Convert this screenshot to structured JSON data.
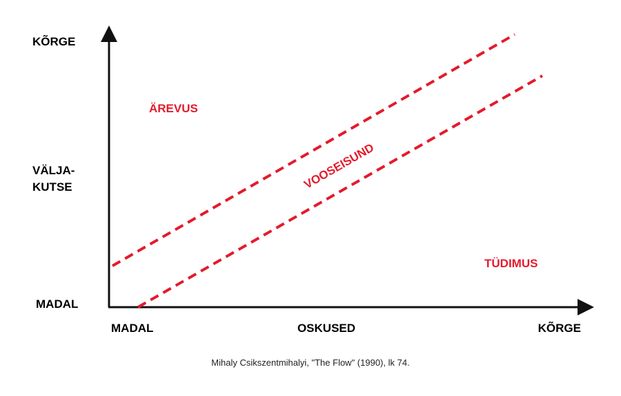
{
  "y_axis": {
    "top_label": "KÕRGE",
    "middle_label_line1": "VÄLJA-",
    "middle_label_line2": "KUTSE",
    "bottom_label": "MADAL"
  },
  "x_axis": {
    "left_label": "MADAL",
    "center_label": "OSKUSED",
    "right_label": "KÕRGE"
  },
  "zones": {
    "upper": "ÄREVUS",
    "channel": "VOOSEISUND",
    "lower": "TÜDIMUS"
  },
  "caption": "Mihaly Csikszentmihalyi, \"The Flow\" (1990), lk 74.",
  "colors": {
    "accent": "#e31b2c",
    "axis": "#111111"
  }
}
